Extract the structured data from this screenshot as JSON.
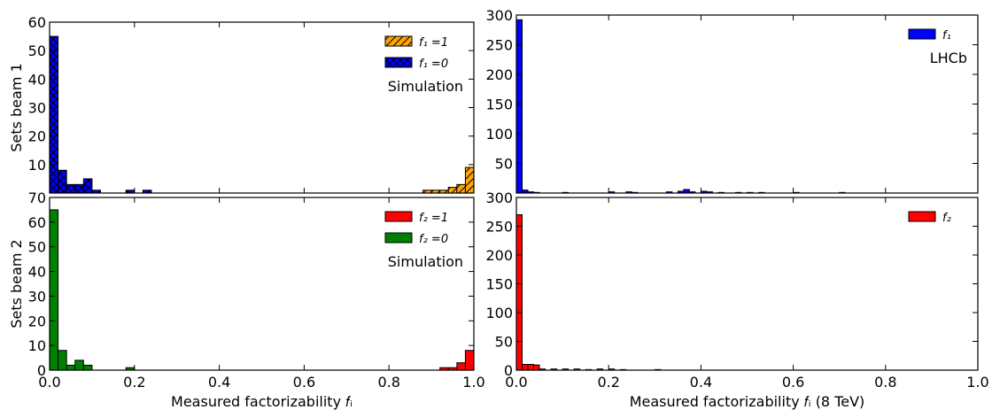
{
  "chart_data": [
    {
      "type": "bar",
      "panel": "left-top",
      "ylabel": "Sets beam 1",
      "xlim": [
        0,
        1
      ],
      "ylim": [
        0,
        60
      ],
      "xticks": [],
      "yticks": [
        10,
        20,
        30,
        40,
        50,
        60
      ],
      "ytick_labels": [
        "10",
        "20",
        "30",
        "40",
        "50",
        "60"
      ],
      "annotation": "Simulation",
      "legend": "top-right",
      "series": [
        {
          "name": "f₁ =1",
          "color": "#ffa500",
          "hatch": "diagonal",
          "bins": [
            [
              0.88,
              0.9,
              1
            ],
            [
              0.9,
              0.92,
              1
            ],
            [
              0.92,
              0.94,
              1
            ],
            [
              0.94,
              0.96,
              2
            ],
            [
              0.96,
              0.98,
              3
            ],
            [
              0.98,
              1.0,
              9
            ]
          ]
        },
        {
          "name": "f₁ =0",
          "color": "#0000ff",
          "hatch": "cross",
          "bins": [
            [
              0.0,
              0.02,
              55
            ],
            [
              0.02,
              0.04,
              8
            ],
            [
              0.04,
              0.06,
              3
            ],
            [
              0.06,
              0.08,
              3
            ],
            [
              0.08,
              0.1,
              5
            ],
            [
              0.1,
              0.12,
              1
            ],
            [
              0.18,
              0.2,
              1
            ],
            [
              0.22,
              0.24,
              1
            ]
          ]
        }
      ]
    },
    {
      "type": "bar",
      "panel": "left-bottom",
      "ylabel": "Sets beam 2",
      "xlabel": "Measured factorizability 𝑓ᵢ",
      "xlim": [
        0,
        1
      ],
      "ylim": [
        0,
        70
      ],
      "xticks": [
        0.0,
        0.2,
        0.4,
        0.6,
        0.8,
        1.0
      ],
      "xtick_labels": [
        "0.0",
        "0.2",
        "0.4",
        "0.6",
        "0.8",
        "1.0"
      ],
      "yticks": [
        0,
        10,
        20,
        30,
        40,
        50,
        60,
        70
      ],
      "ytick_labels": [
        "0",
        "10",
        "20",
        "30",
        "40",
        "50",
        "60",
        "70"
      ],
      "annotation": "Simulation",
      "legend": "top-right",
      "series": [
        {
          "name": "f₂ =1",
          "color": "#ff0000",
          "hatch": "none",
          "bins": [
            [
              0.92,
              0.94,
              1
            ],
            [
              0.94,
              0.96,
              1
            ],
            [
              0.96,
              0.98,
              3
            ],
            [
              0.98,
              1.0,
              8
            ]
          ]
        },
        {
          "name": "f₂ =0",
          "color": "#008000",
          "hatch": "none",
          "bins": [
            [
              0.0,
              0.02,
              65
            ],
            [
              0.02,
              0.04,
              8
            ],
            [
              0.04,
              0.06,
              2
            ],
            [
              0.06,
              0.08,
              4
            ],
            [
              0.08,
              0.1,
              2
            ],
            [
              0.18,
              0.2,
              1
            ]
          ]
        }
      ]
    },
    {
      "type": "bar",
      "panel": "right-top",
      "xlim": [
        0,
        1
      ],
      "ylim": [
        0,
        300
      ],
      "xticks": [],
      "yticks": [
        50,
        100,
        150,
        200,
        250,
        300
      ],
      "ytick_labels": [
        "50",
        "100",
        "150",
        "200",
        "250",
        "300"
      ],
      "annotation": "LHCb",
      "legend": "top-right",
      "series": [
        {
          "name": "f₁",
          "color": "#0000ff",
          "hatch": "none",
          "bins": [
            [
              0.0,
              0.0125,
              292
            ],
            [
              0.0125,
              0.025,
              5
            ],
            [
              0.025,
              0.0375,
              2
            ],
            [
              0.0375,
              0.05,
              1
            ],
            [
              0.1,
              0.1125,
              1
            ],
            [
              0.2,
              0.2125,
              2
            ],
            [
              0.2375,
              0.25,
              2
            ],
            [
              0.25,
              0.2625,
              1
            ],
            [
              0.325,
              0.3375,
              2
            ],
            [
              0.35,
              0.3625,
              3
            ],
            [
              0.3625,
              0.375,
              6
            ],
            [
              0.375,
              0.3875,
              2
            ],
            [
              0.4,
              0.4125,
              3
            ],
            [
              0.4125,
              0.425,
              2
            ],
            [
              0.4375,
              0.45,
              1
            ],
            [
              0.475,
              0.4875,
              1
            ],
            [
              0.5,
              0.5125,
              1
            ],
            [
              0.525,
              0.5375,
              1
            ],
            [
              0.6,
              0.6125,
              1
            ],
            [
              0.7,
              0.7125,
              1
            ]
          ]
        }
      ]
    },
    {
      "type": "bar",
      "panel": "right-bottom",
      "xlabel": "Measured factorizability 𝑓ᵢ (8 TeV)",
      "xlim": [
        0,
        1
      ],
      "ylim": [
        0,
        300
      ],
      "xticks": [
        0.0,
        0.2,
        0.4,
        0.6,
        0.8,
        1.0
      ],
      "xtick_labels": [
        "0.0",
        "0.2",
        "0.4",
        "0.6",
        "0.8",
        "1.0"
      ],
      "yticks": [
        0,
        50,
        100,
        150,
        200,
        250,
        300
      ],
      "ytick_labels": [
        "0",
        "50",
        "100",
        "150",
        "200",
        "250",
        "300"
      ],
      "legend": "top-right",
      "series": [
        {
          "name": "f₂",
          "color": "#ff0000",
          "hatch": "none",
          "bins": [
            [
              0.0,
              0.0125,
              270
            ],
            [
              0.0125,
              0.025,
              10
            ],
            [
              0.025,
              0.0375,
              10
            ],
            [
              0.0375,
              0.05,
              9
            ],
            [
              0.05,
              0.0625,
              2
            ],
            [
              0.075,
              0.0875,
              2
            ],
            [
              0.1,
              0.1125,
              2
            ],
            [
              0.125,
              0.1375,
              2
            ],
            [
              0.15,
              0.1625,
              1
            ],
            [
              0.175,
              0.1875,
              2
            ],
            [
              0.2,
              0.2125,
              2
            ],
            [
              0.225,
              0.2375,
              1
            ],
            [
              0.3,
              0.3125,
              1
            ]
          ]
        }
      ]
    }
  ]
}
